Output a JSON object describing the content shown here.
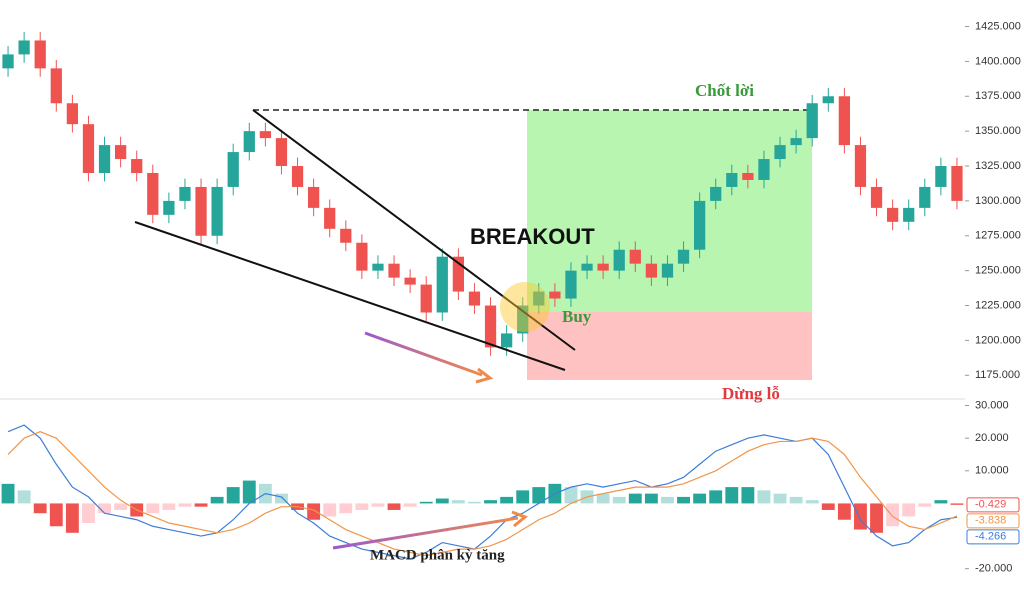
{
  "chart_data": [
    {
      "type": "candlestick",
      "open": [
        1395,
        1405,
        1415,
        1395,
        1370,
        1355,
        1320,
        1340,
        1330,
        1320,
        1290,
        1300,
        1310,
        1275,
        1310,
        1335,
        1350,
        1345,
        1325,
        1310,
        1295,
        1280,
        1270,
        1250,
        1255,
        1245,
        1240,
        1220,
        1260,
        1235,
        1225,
        1195,
        1205,
        1225,
        1235,
        1230,
        1250,
        1255,
        1250,
        1265,
        1255,
        1245,
        1255,
        1265,
        1300,
        1310,
        1320,
        1315,
        1330,
        1340,
        1345,
        1370,
        1375,
        1340,
        1310,
        1295,
        1285,
        1295,
        1310,
        1325
      ],
      "high": [
        1411,
        1421,
        1421,
        1401,
        1376,
        1361,
        1346,
        1346,
        1336,
        1326,
        1306,
        1316,
        1316,
        1316,
        1341,
        1356,
        1356,
        1351,
        1331,
        1316,
        1301,
        1286,
        1276,
        1261,
        1261,
        1251,
        1246,
        1266,
        1266,
        1241,
        1231,
        1211,
        1231,
        1241,
        1241,
        1256,
        1261,
        1261,
        1271,
        1271,
        1261,
        1261,
        1271,
        1306,
        1316,
        1326,
        1326,
        1336,
        1346,
        1351,
        1376,
        1381,
        1381,
        1346,
        1316,
        1301,
        1301,
        1316,
        1331,
        1331
      ],
      "low": [
        1389,
        1399,
        1389,
        1364,
        1349,
        1314,
        1314,
        1324,
        1314,
        1284,
        1284,
        1294,
        1269,
        1269,
        1304,
        1329,
        1339,
        1319,
        1304,
        1289,
        1274,
        1264,
        1244,
        1244,
        1239,
        1234,
        1214,
        1214,
        1229,
        1219,
        1189,
        1189,
        1199,
        1219,
        1224,
        1224,
        1244,
        1244,
        1244,
        1249,
        1239,
        1239,
        1249,
        1259,
        1294,
        1304,
        1309,
        1309,
        1324,
        1334,
        1339,
        1364,
        1334,
        1304,
        1289,
        1279,
        1279,
        1289,
        1304,
        1294
      ],
      "close": [
        1405,
        1415,
        1395,
        1370,
        1355,
        1320,
        1340,
        1330,
        1320,
        1290,
        1300,
        1310,
        1275,
        1310,
        1335,
        1350,
        1345,
        1325,
        1310,
        1295,
        1280,
        1270,
        1250,
        1255,
        1245,
        1240,
        1220,
        1260,
        1235,
        1225,
        1195,
        1205,
        1225,
        1235,
        1230,
        1250,
        1255,
        1250,
        1265,
        1255,
        1245,
        1255,
        1265,
        1300,
        1310,
        1320,
        1315,
        1330,
        1340,
        1345,
        1370,
        1375,
        1340,
        1310,
        1295,
        1285,
        1295,
        1310,
        1325,
        1300
      ],
      "color_up": "#26a69a",
      "color_down": "#ef5350",
      "ylim": [
        1158,
        1444
      ],
      "yticks": [
        {
          "value": 1175,
          "label": "1175.000"
        },
        {
          "value": 1200,
          "label": "1200.000"
        },
        {
          "value": 1225,
          "label": "1225.000"
        },
        {
          "value": 1250,
          "label": "1250.000"
        },
        {
          "value": 1275,
          "label": "1275.000"
        },
        {
          "value": 1300,
          "label": "1300.000"
        },
        {
          "value": 1325,
          "label": "1325.000"
        },
        {
          "value": 1350,
          "label": "1350.000"
        },
        {
          "value": 1375,
          "label": "1375.000"
        },
        {
          "value": 1400,
          "label": "1400.000"
        },
        {
          "value": 1425,
          "label": "1425.000"
        }
      ],
      "annotations": {
        "breakout": "BREAKOUT",
        "take_profit": "Chốt lời",
        "stop_loss": "Dừng lỗ",
        "buy": "Buy"
      }
    },
    {
      "type": "macd",
      "histogram": {
        "values": [
          6,
          4,
          -3,
          -7,
          -9,
          -6,
          -3,
          -2,
          -4,
          -3,
          -2,
          -1,
          -1,
          2,
          5,
          7,
          6,
          3,
          -2,
          -5,
          -4,
          -3,
          -2,
          -1,
          -2,
          -1,
          0.5,
          1.5,
          1,
          0.5,
          1,
          2,
          4,
          5,
          6,
          5,
          4,
          3,
          2,
          3,
          3,
          2,
          2,
          3,
          4,
          5,
          5,
          4,
          3,
          2,
          1,
          -2,
          -5,
          -8,
          -9,
          -7,
          -4,
          -1,
          1,
          -0.429
        ],
        "color_up": "#26a69a",
        "color_up_weak": "#b2dfdb",
        "color_down": "#ef5350",
        "color_down_weak": "#ffcdd2"
      },
      "macd": {
        "values": [
          22,
          24,
          20,
          12,
          5,
          2,
          -3,
          -4,
          -5,
          -7,
          -8,
          -9,
          -10,
          -9,
          -5,
          0,
          3,
          2,
          -3,
          -6,
          -10,
          -12,
          -14,
          -15,
          -16,
          -17,
          -15,
          -12,
          -13,
          -14,
          -10,
          -5,
          -3,
          0,
          3,
          5,
          6,
          5,
          6,
          7,
          5,
          6,
          8,
          12,
          16,
          18,
          20,
          21,
          20,
          19,
          20,
          15,
          5,
          -5,
          -10,
          -13,
          -12,
          -8,
          -5,
          -4.266
        ],
        "color": "#3d7dd8"
      },
      "signal": {
        "values": [
          15,
          20,
          22,
          20,
          15,
          10,
          5,
          1,
          -2,
          -4,
          -6,
          -7,
          -8,
          -9,
          -8,
          -6,
          -3,
          -1,
          -1,
          -2,
          -5,
          -8,
          -10,
          -12,
          -14,
          -15,
          -16,
          -15,
          -14,
          -14,
          -13,
          -11,
          -8,
          -5,
          -3,
          0,
          2,
          3,
          4,
          5,
          5,
          5,
          6,
          8,
          10,
          13,
          16,
          18,
          19,
          19,
          20,
          19,
          15,
          8,
          2,
          -4,
          -7,
          -8,
          -6,
          -3.838
        ],
        "color": "#f0964a"
      },
      "ylim": [
        -25,
        32
      ],
      "yticks": [
        {
          "value": -20,
          "label": "-20.000"
        },
        {
          "value": 10,
          "label": "10.000"
        },
        {
          "value": 20,
          "label": "20.000"
        },
        {
          "value": 30,
          "label": "30.000"
        }
      ],
      "annotations": {
        "divergence": "MACD phân kỳ tăng"
      }
    }
  ]
}
